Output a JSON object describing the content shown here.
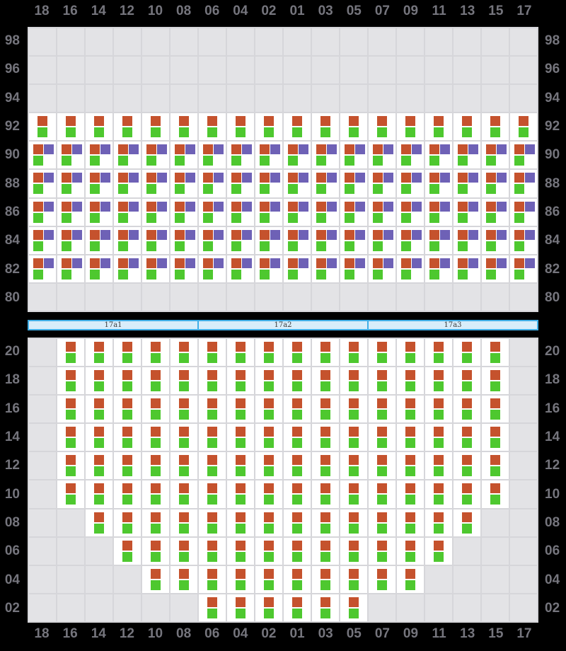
{
  "columns": [
    "18",
    "16",
    "14",
    "12",
    "10",
    "08",
    "06",
    "04",
    "02",
    "01",
    "03",
    "05",
    "07",
    "09",
    "11",
    "13",
    "15",
    "17"
  ],
  "colors": {
    "background": "#000000",
    "label_text": "#75757d",
    "gridline": "#d6d6da",
    "empty_cell": "#e3e3e6",
    "seat_cell": "#ffffff",
    "seat_orange": "#c5522d",
    "seat_green": "#4ec82f",
    "seat_purple": "#6e61b6",
    "bar_fill": "#d8edfa",
    "bar_border": "#41aee6"
  },
  "cell_legend": {
    "0": "empty",
    "2": "seat with orange and green markers",
    "3": "seat with orange, purple and green markers"
  },
  "divider": {
    "segments": [
      {
        "label": "17a1"
      },
      {
        "label": "17a2"
      },
      {
        "label": "17a3"
      }
    ]
  },
  "top_section": {
    "rows": [
      {
        "label": "98",
        "cells": "000000000000000000"
      },
      {
        "label": "96",
        "cells": "000000000000000000"
      },
      {
        "label": "94",
        "cells": "000000000000000000"
      },
      {
        "label": "92",
        "cells": "222222222222222222"
      },
      {
        "label": "90",
        "cells": "333333333333333333"
      },
      {
        "label": "88",
        "cells": "333333333333333333"
      },
      {
        "label": "86",
        "cells": "333333333333333333"
      },
      {
        "label": "84",
        "cells": "333333333333333333"
      },
      {
        "label": "82",
        "cells": "333333333333333333"
      },
      {
        "label": "80",
        "cells": "000000000000000000"
      }
    ]
  },
  "bottom_section": {
    "rows": [
      {
        "label": "20",
        "cells": "022222222222222220"
      },
      {
        "label": "18",
        "cells": "022222222222222220"
      },
      {
        "label": "16",
        "cells": "022222222222222220"
      },
      {
        "label": "14",
        "cells": "022222222222222220"
      },
      {
        "label": "12",
        "cells": "022222222222222220"
      },
      {
        "label": "10",
        "cells": "022222222222222220"
      },
      {
        "label": "08",
        "cells": "002222222222222200"
      },
      {
        "label": "06",
        "cells": "000222222222222000"
      },
      {
        "label": "04",
        "cells": "000022222222220000"
      },
      {
        "label": "02",
        "cells": "000000222222000000"
      }
    ]
  }
}
